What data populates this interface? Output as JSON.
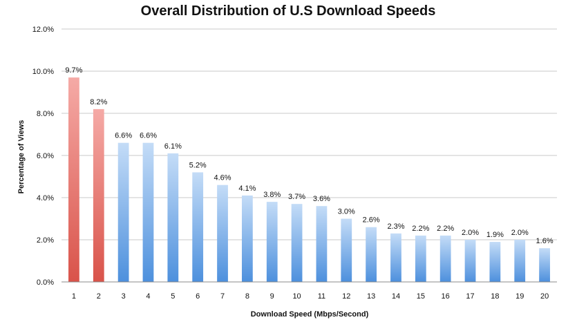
{
  "chart_data": {
    "type": "bar",
    "title": "Overall Distribution of U.S Download Speeds",
    "xlabel": "Download Speed (Mbps/Second)",
    "ylabel": "Percentage of Views",
    "categories": [
      "1",
      "2",
      "3",
      "4",
      "5",
      "6",
      "7",
      "8",
      "9",
      "10",
      "11",
      "12",
      "13",
      "14",
      "15",
      "16",
      "17",
      "18",
      "19",
      "20"
    ],
    "values": [
      9.7,
      8.2,
      6.6,
      6.6,
      6.1,
      5.2,
      4.6,
      4.1,
      3.8,
      3.7,
      3.6,
      3.0,
      2.6,
      2.3,
      2.2,
      2.2,
      2.0,
      1.9,
      2.0,
      1.6
    ],
    "data_labels": [
      "9.7%",
      "8.2%",
      "6.6%",
      "6.6%",
      "6.1%",
      "5.2%",
      "4.6%",
      "4.1%",
      "3.8%",
      "3.7%",
      "3.6%",
      "3.0%",
      "2.6%",
      "2.3%",
      "2.2%",
      "2.2%",
      "2.0%",
      "1.9%",
      "2.0%",
      "1.6%"
    ],
    "highlighted_categories": [
      "1",
      "2"
    ],
    "ylim": [
      0,
      12
    ],
    "yticks": [
      "0.0%",
      "2.0%",
      "4.0%",
      "6.0%",
      "8.0%",
      "10.0%",
      "12.0%"
    ],
    "grid": true,
    "legend": "none",
    "colors": {
      "highlight_top": "#f5aaa6",
      "highlight_bottom": "#d9534a",
      "normal_top": "#c4dcf7",
      "normal_bottom": "#4d90dd",
      "grid": "#c8c8c8"
    }
  }
}
